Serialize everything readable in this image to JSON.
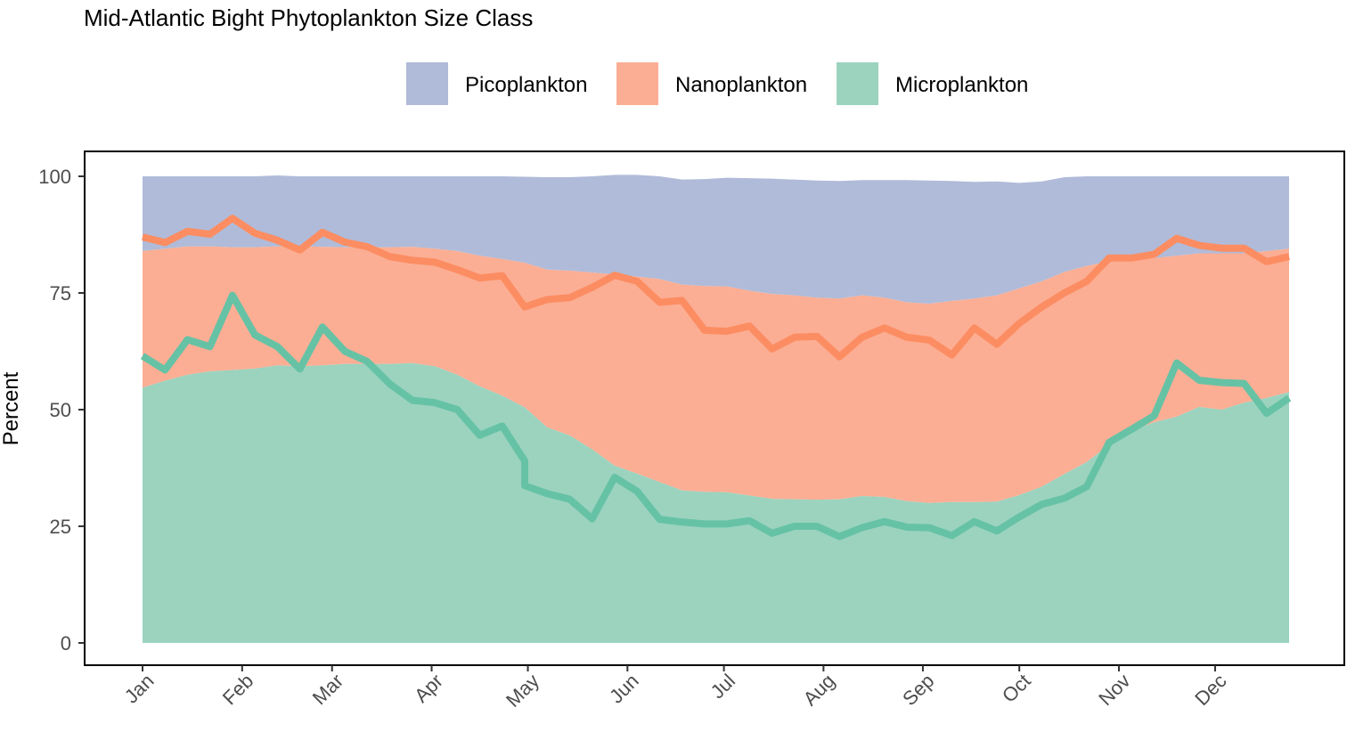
{
  "chart_data": {
    "type": "area",
    "title": "Mid-Atlantic Bight Phytoplankton Size Class",
    "xlabel": "",
    "ylabel": "Percent",
    "ylim": [
      0,
      105
    ],
    "y_ticks": [
      0,
      25,
      50,
      75,
      100
    ],
    "x_ticks": [
      {
        "label": "Jan",
        "week": 1
      },
      {
        "label": "Feb",
        "week": 5.43
      },
      {
        "label": "Mar",
        "week": 9.43
      },
      {
        "label": "Apr",
        "week": 13.86
      },
      {
        "label": "May",
        "week": 18.14
      },
      {
        "label": "Jun",
        "week": 22.57
      },
      {
        "label": "Jul",
        "week": 26.86
      },
      {
        "label": "Aug",
        "week": 31.29
      },
      {
        "label": "Sep",
        "week": 35.71
      },
      {
        "label": "Oct",
        "week": 40
      },
      {
        "label": "Nov",
        "week": 44.43
      },
      {
        "label": "Dec",
        "week": 48.71
      }
    ],
    "grid": false,
    "legend_position": "top",
    "x_weeks": [
      1,
      2,
      3,
      4,
      5,
      6,
      7,
      8,
      9,
      10,
      11,
      12,
      13,
      14,
      15,
      16,
      17,
      18,
      19,
      20,
      21,
      22,
      23,
      24,
      25,
      26,
      27,
      28,
      29,
      30,
      31,
      32,
      33,
      34,
      35,
      36,
      37,
      38,
      39,
      40,
      41,
      42,
      43,
      44,
      45,
      46,
      47,
      48,
      49,
      50,
      51,
      52
    ],
    "area_series": [
      {
        "name": "Microplankton",
        "color": "#66c2a5",
        "cumulative_top": [
          54.7,
          56.2,
          57.5,
          58.2,
          58.5,
          58.8,
          59.5,
          59.3,
          59.5,
          59.8,
          59.8,
          59.8,
          60.0,
          59.3,
          57.5,
          55.0,
          53.0,
          50.5,
          46.2,
          44.5,
          41.5,
          38.0,
          36.3,
          34.5,
          32.7,
          32.4,
          32.3,
          31.6,
          30.9,
          30.8,
          30.7,
          30.8,
          31.5,
          31.3,
          30.4,
          30.0,
          30.2,
          30.2,
          30.3,
          31.7,
          33.5,
          36.2,
          38.8,
          42.5,
          45.5,
          47.3,
          48.5,
          50.6,
          50.0,
          51.5,
          52.5,
          53.8
        ]
      },
      {
        "name": "Nanoplankton",
        "color": "#fc8d62",
        "cumulative_top": [
          84.0,
          84.5,
          85.0,
          85.0,
          84.8,
          84.8,
          85.0,
          85.0,
          84.9,
          84.8,
          84.8,
          84.8,
          84.9,
          84.5,
          84.0,
          83.0,
          82.3,
          81.5,
          80.0,
          79.8,
          79.4,
          79.0,
          78.5,
          78.0,
          76.8,
          76.5,
          76.4,
          75.5,
          74.8,
          74.5,
          74.0,
          73.8,
          74.5,
          74.0,
          73.0,
          72.7,
          73.3,
          73.8,
          74.5,
          76.0,
          77.5,
          79.5,
          80.8,
          81.8,
          82.3,
          82.5,
          83.0,
          83.5,
          83.5,
          83.5,
          84.0,
          84.5
        ]
      },
      {
        "name": "Picoplankton",
        "color": "#8da0cb",
        "cumulative_top": [
          100,
          100,
          100,
          100,
          100,
          100,
          100.2,
          100,
          100,
          100,
          100,
          100,
          100,
          100,
          100,
          100,
          100,
          99.9,
          99.8,
          99.8,
          100,
          100.3,
          100.3,
          100,
          99.3,
          99.4,
          99.7,
          99.6,
          99.5,
          99.3,
          99.1,
          99.0,
          99.2,
          99.2,
          99.2,
          99.1,
          99.0,
          98.8,
          98.9,
          98.6,
          98.9,
          99.8,
          100,
          100,
          100,
          100,
          100,
          100,
          100,
          100,
          100,
          100
        ]
      }
    ],
    "line_series": [
      {
        "name": "Microplankton",
        "color": "#66c2a5",
        "values": [
          61.5,
          58.5,
          65.0,
          63.5,
          74.5,
          66.0,
          63.5,
          58.7,
          67.7,
          62.5,
          60.3,
          55.5,
          52.0,
          51.5,
          50.0,
          44.5,
          46.5,
          39.0,
          33.7,
          32.0,
          30.8,
          26.6,
          35.5,
          32.5,
          26.5,
          25.9,
          25.5,
          25.5,
          26.2,
          23.5,
          25.0,
          25.0,
          22.8,
          24.7,
          26.0,
          24.8,
          24.7,
          23.0,
          26.0,
          24.0,
          27.0,
          29.7,
          31.0,
          33.5,
          43.0,
          45.8,
          48.7,
          60.0,
          56.3,
          55.8,
          55.6,
          49.2,
          52.5
        ]
      },
      {
        "name": "Nanoplankton",
        "color": "#fc8d62",
        "values": [
          87.0,
          85.8,
          88.2,
          87.6,
          91.0,
          87.8,
          86.3,
          84.2,
          88.0,
          85.9,
          84.9,
          82.8,
          82.0,
          81.6,
          80.0,
          78.2,
          78.7,
          72.0,
          73.6,
          74.0,
          76.2,
          78.8,
          77.5,
          73.0,
          73.4,
          67.0,
          66.8,
          67.9,
          63.0,
          65.5,
          65.7,
          61.3,
          65.5,
          67.5,
          65.5,
          64.9,
          61.7,
          67.5,
          64.0,
          68.5,
          72.0,
          75.0,
          77.5,
          82.5,
          82.5,
          83.3,
          86.7,
          85.2,
          84.6,
          84.6,
          81.7,
          82.8
        ]
      }
    ],
    "line_series_note_x": "Microplankton line has an extra vertical drop at week 18 (two values)"
  }
}
